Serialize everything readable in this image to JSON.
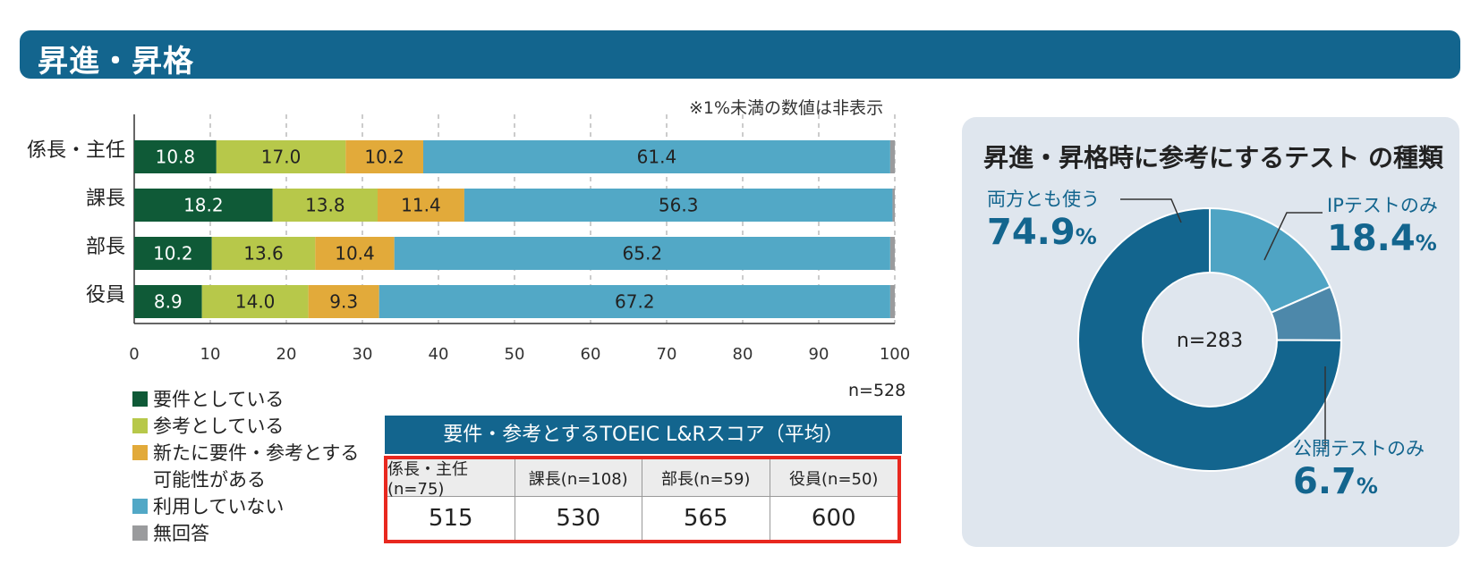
{
  "header": {
    "title": "昇進・昇格"
  },
  "note": "※1%未満の数値は非表示",
  "chart_data": [
    {
      "type": "bar",
      "orientation": "horizontal",
      "stacked": true,
      "categories": [
        "係長・主任",
        "課長",
        "部長",
        "役員"
      ],
      "series": [
        {
          "name": "要件としている",
          "color": "#0f5a37",
          "values": [
            10.8,
            18.2,
            10.2,
            8.9
          ]
        },
        {
          "name": "参考としている",
          "color": "#b7c84a",
          "values": [
            17.0,
            13.8,
            13.6,
            14.0
          ]
        },
        {
          "name": "新たに要件・参考とする\n可能性がある",
          "color": "#e2aa3a",
          "values": [
            10.2,
            11.4,
            10.4,
            9.3
          ]
        },
        {
          "name": "利用していない",
          "color": "#52a8c6",
          "values": [
            61.4,
            56.3,
            65.2,
            67.2
          ]
        },
        {
          "name": "無回答",
          "color": "#9a9b9d",
          "values": [
            0.6,
            0.3,
            0.6,
            0.6
          ]
        }
      ],
      "xlim": [
        0,
        100
      ],
      "xticks": [
        "0",
        "10",
        "20",
        "30",
        "40",
        "50",
        "60",
        "70",
        "80",
        "90",
        "100"
      ],
      "xunit": "[%]",
      "grid": true,
      "n_label": "n=528"
    },
    {
      "type": "pie",
      "title": "昇進・昇格時に参考にするテスト の種類",
      "center_label": "n=283",
      "slices": [
        {
          "name": "IPテストのみ",
          "value": 18.4,
          "display": "18.4",
          "color": "#4fa4c4"
        },
        {
          "name": "公開テストのみ",
          "value": 6.7,
          "display": "6.7",
          "color": "#4d88aa"
        },
        {
          "name": "両方とも使う",
          "value": 74.9,
          "display": "74.9",
          "color": "#13658e"
        }
      ],
      "unit": "%"
    }
  ],
  "score_table": {
    "title": "要件・参考とするTOEIC L&Rスコア（平均）",
    "headers": [
      "係長・主任(n=75)",
      "課長(n=108)",
      "部長(n=59)",
      "役員(n=50)"
    ],
    "values": [
      "515",
      "530",
      "565",
      "600"
    ]
  }
}
